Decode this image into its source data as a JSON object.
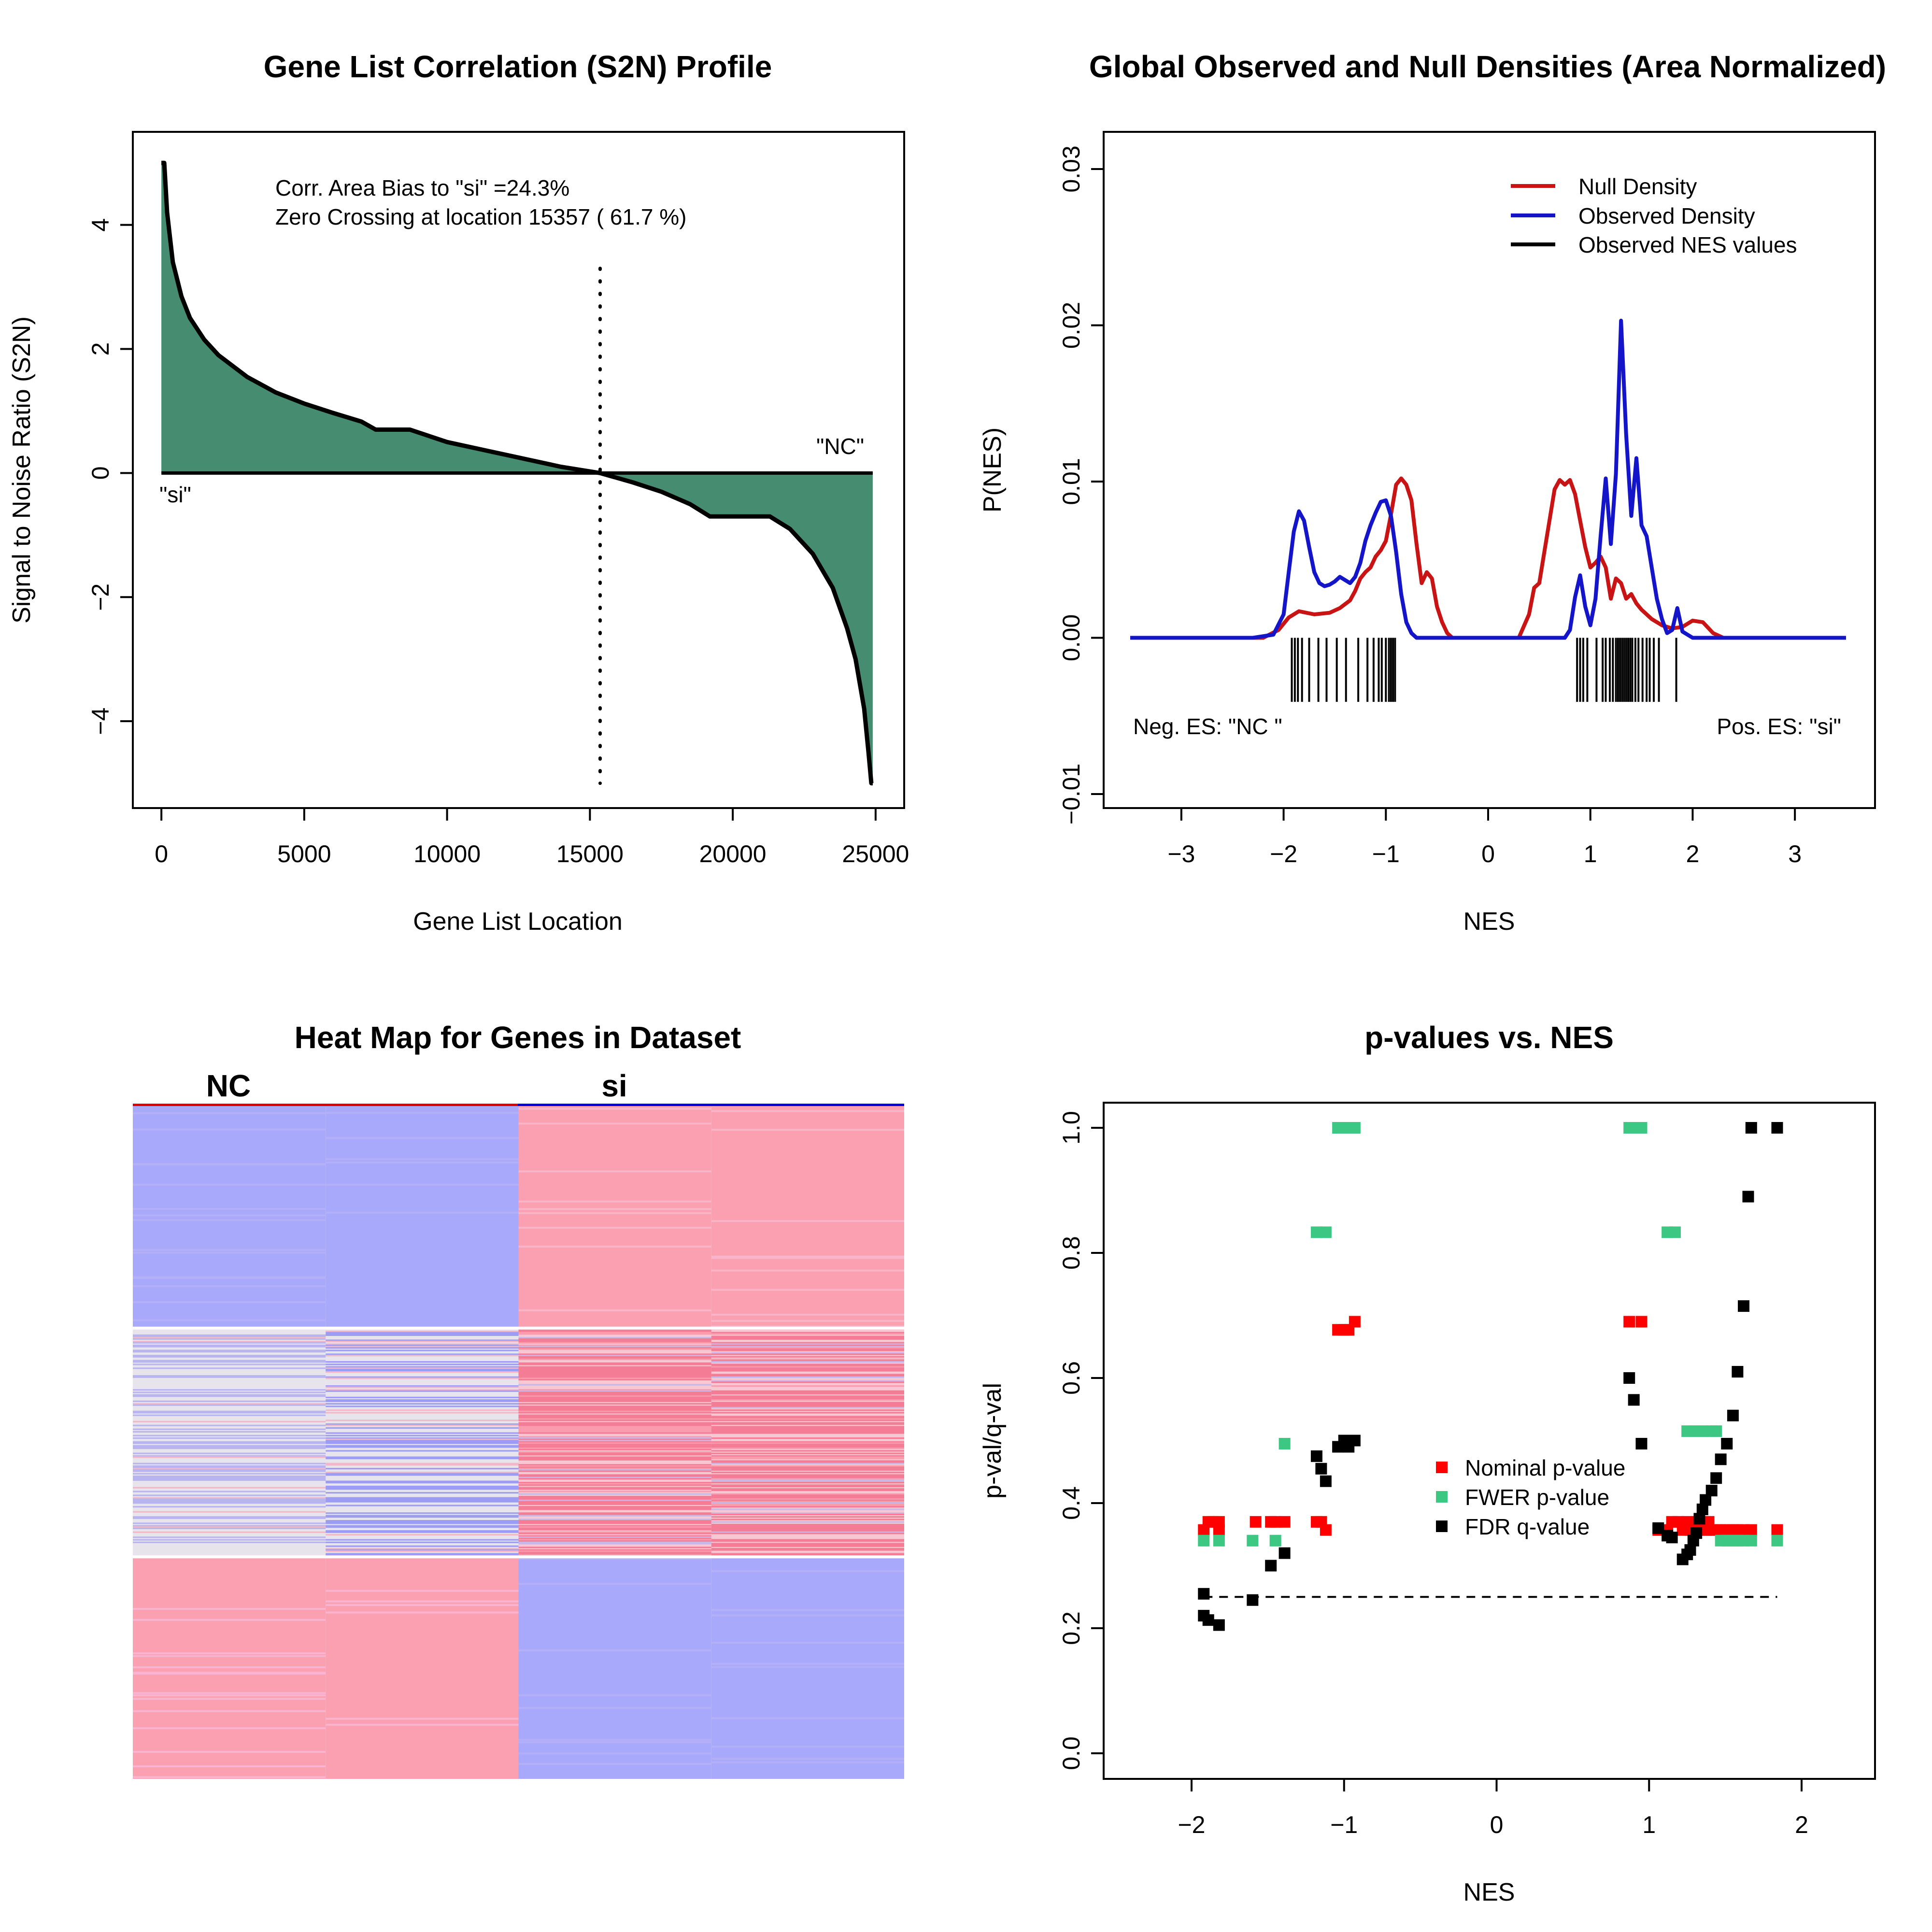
{
  "colors": {
    "fill_green": "#468C70",
    "null_red": "#C81414",
    "obs_blue": "#1414C8",
    "nominal_red": "#FF0000",
    "fwer_green": "#3CC882",
    "fdr_black": "#000000",
    "heat_blue": "#A9A9FB",
    "heat_pink": "#FBA0B0",
    "heat_white": "#E8E4EC"
  },
  "chart_data": [
    {
      "type": "area",
      "title": "Gene List Correlation (S2N) Profile",
      "xlabel": "Gene List Location",
      "ylabel": "Signal to Noise Ratio (S2N)",
      "xlim": [
        -1000,
        26000
      ],
      "ylim": [
        -5.4,
        5.5
      ],
      "xticks": [
        "0",
        "5000",
        "10000",
        "15000",
        "20000",
        "25000"
      ],
      "yticks": [
        "−4",
        "−2",
        "0",
        "2",
        "4"
      ],
      "x": [
        0,
        100,
        200,
        400,
        700,
        1000,
        1500,
        2000,
        3000,
        4000,
        5000,
        6000,
        7000,
        7500,
        8700,
        10000,
        12000,
        14000,
        15357,
        16500,
        17500,
        18500,
        19200,
        20000,
        21300,
        22000,
        22800,
        23500,
        24000,
        24300,
        24600,
        24750,
        24850,
        24900
      ],
      "values": [
        5.0,
        5.0,
        4.2,
        3.4,
        2.85,
        2.5,
        2.15,
        1.9,
        1.55,
        1.3,
        1.12,
        0.97,
        0.83,
        0.7,
        0.7,
        0.5,
        0.3,
        0.1,
        0.0,
        -0.15,
        -0.3,
        -0.5,
        -0.7,
        -0.7,
        -0.7,
        -0.9,
        -1.3,
        -1.85,
        -2.5,
        -3.0,
        -3.8,
        -4.5,
        -5.0,
        -5.0
      ],
      "zero_crossing": 15357,
      "annotations": [
        "Corr. Area Bias to \"si\" =24.3%",
        "Zero Crossing at location  15357  ( 61.7  %)"
      ],
      "end_labels": [
        "\"si\"",
        "\"NC\""
      ]
    },
    {
      "type": "line",
      "title": "Global Observed and Null Densities (Area Normalized)",
      "xlabel": "NES",
      "ylabel": "P(NES)",
      "xlim": [
        -3.5,
        3.5
      ],
      "ylim": [
        -0.0108,
        0.0303
      ],
      "xticks": [
        -3,
        -2,
        -1,
        0,
        1,
        2,
        3
      ],
      "yticks": [
        "−0.01",
        "0.00",
        "0.01",
        "0.02",
        "0.03"
      ],
      "legend": [
        "Null Density",
        "Observed Density",
        "Observed NES values"
      ],
      "legend_position": "top-right",
      "series": [
        {
          "name": "Null Density",
          "x": [
            -3.5,
            -2.2,
            -2.05,
            -1.95,
            -1.85,
            -1.7,
            -1.55,
            -1.45,
            -1.35,
            -1.3,
            -1.25,
            -1.2,
            -1.15,
            -1.1,
            -1.05,
            -1.0,
            -0.95,
            -0.9,
            -0.85,
            -0.8,
            -0.75,
            -0.7,
            -0.65,
            -0.6,
            -0.55,
            -0.5,
            -0.45,
            -0.4,
            -0.35,
            -0.3,
            0.3,
            0.4,
            0.45,
            0.5,
            0.55,
            0.6,
            0.65,
            0.7,
            0.75,
            0.8,
            0.85,
            0.9,
            0.95,
            1.0,
            1.05,
            1.1,
            1.15,
            1.2,
            1.25,
            1.3,
            1.35,
            1.4,
            1.45,
            1.5,
            1.55,
            1.6,
            1.7,
            1.8,
            1.9,
            2.0,
            2.1,
            2.2,
            2.3,
            3.5
          ],
          "values": [
            0,
            0,
            0.0005,
            0.0013,
            0.0017,
            0.0015,
            0.0016,
            0.0019,
            0.0024,
            0.003,
            0.0038,
            0.0042,
            0.0045,
            0.0052,
            0.0056,
            0.0062,
            0.0079,
            0.0098,
            0.0102,
            0.0098,
            0.0088,
            0.006,
            0.0035,
            0.0042,
            0.0038,
            0.002,
            0.001,
            0.0003,
            0,
            0,
            0,
            0.0015,
            0.0032,
            0.0035,
            0.0055,
            0.0075,
            0.0095,
            0.0101,
            0.0098,
            0.0101,
            0.0092,
            0.0075,
            0.0058,
            0.0045,
            0.0048,
            0.0052,
            0.0045,
            0.0025,
            0.0038,
            0.0035,
            0.0025,
            0.0028,
            0.0022,
            0.0018,
            0.0015,
            0.0012,
            0.0008,
            0.0006,
            0.0007,
            0.0011,
            0.001,
            0.0003,
            0,
            0
          ]
        },
        {
          "name": "Observed Density",
          "x": [
            -3.5,
            -2.3,
            -2.1,
            -2.0,
            -1.95,
            -1.9,
            -1.85,
            -1.8,
            -1.75,
            -1.7,
            -1.65,
            -1.6,
            -1.55,
            -1.5,
            -1.45,
            -1.4,
            -1.35,
            -1.3,
            -1.25,
            -1.2,
            -1.15,
            -1.1,
            -1.05,
            -1.0,
            -0.95,
            -0.9,
            -0.85,
            -0.8,
            -0.75,
            -0.7,
            -0.6,
            0.6,
            0.75,
            0.8,
            0.85,
            0.9,
            0.95,
            1.0,
            1.05,
            1.1,
            1.15,
            1.2,
            1.25,
            1.3,
            1.35,
            1.4,
            1.45,
            1.5,
            1.55,
            1.6,
            1.65,
            1.7,
            1.75,
            1.8,
            1.85,
            1.9,
            2.0,
            3.5
          ],
          "values": [
            0,
            0,
            0.0002,
            0.0015,
            0.0042,
            0.0068,
            0.0081,
            0.0075,
            0.0058,
            0.0042,
            0.0035,
            0.0033,
            0.0034,
            0.0036,
            0.0039,
            0.0037,
            0.0035,
            0.0039,
            0.0048,
            0.0062,
            0.0072,
            0.008,
            0.0087,
            0.0088,
            0.0078,
            0.0055,
            0.0028,
            0.001,
            0.0003,
            0,
            0,
            0,
            0,
            0.0005,
            0.0026,
            0.004,
            0.002,
            0.0008,
            0.0025,
            0.0065,
            0.0102,
            0.006,
            0.0105,
            0.0203,
            0.013,
            0.0078,
            0.0115,
            0.0072,
            0.0065,
            0.0045,
            0.0025,
            0.0012,
            0.0003,
            0.0005,
            0.0019,
            0.0004,
            0,
            0
          ]
        }
      ],
      "observed_nes": [
        -1.92,
        -1.89,
        -1.86,
        -1.82,
        -1.75,
        -1.66,
        -1.58,
        -1.48,
        -1.39,
        -1.27,
        -1.18,
        -1.12,
        -1.07,
        -1.04,
        -1.0,
        -0.97,
        -0.95,
        -0.93,
        -0.91,
        0.87,
        0.9,
        0.93,
        0.97,
        1.06,
        1.12,
        1.15,
        1.19,
        1.22,
        1.25,
        1.27,
        1.29,
        1.31,
        1.33,
        1.35,
        1.37,
        1.39,
        1.41,
        1.44,
        1.47,
        1.51,
        1.55,
        1.58,
        1.62,
        1.67,
        1.84
      ],
      "side_labels": [
        "Neg. ES: \"NC \"",
        "Pos. ES: \"si\""
      ]
    },
    {
      "type": "heatmap",
      "title": "Heat Map for Genes in Dataset",
      "column_groups": [
        "NC",
        "si"
      ],
      "columns": 4,
      "row_fractions": {
        "top_block": 0.33,
        "middle_block": 0.34,
        "bottom_block": 0.33
      }
    },
    {
      "type": "scatter",
      "title": "p-values vs. NES",
      "xlabel": "NES",
      "ylabel": "p-val/q-val",
      "xlim": [
        -2.5,
        2.5
      ],
      "ylim": [
        -0.04,
        1.04
      ],
      "xticks": [
        "−2",
        "−1",
        "0",
        "1",
        "2"
      ],
      "yticks": [
        "0.0",
        "0.2",
        "0.4",
        "0.6",
        "0.8",
        "1.0"
      ],
      "legend": [
        "Nominal p-value",
        "FWER p-value",
        "FDR q-value"
      ],
      "legend_position": "center-right",
      "threshold": 0.25,
      "series": [
        {
          "name": "Nominal p-value",
          "points": [
            [
              -1.92,
              0.357
            ],
            [
              -1.89,
              0.37
            ],
            [
              -1.86,
              0.37
            ],
            [
              -1.82,
              0.37
            ],
            [
              -1.82,
              0.357
            ],
            [
              -1.58,
              0.37
            ],
            [
              -1.48,
              0.37
            ],
            [
              -1.45,
              0.37
            ],
            [
              -1.39,
              0.37
            ],
            [
              -1.18,
              0.37
            ],
            [
              -1.15,
              0.37
            ],
            [
              -1.12,
              0.357
            ],
            [
              -1.04,
              0.677
            ],
            [
              -1.0,
              0.677
            ],
            [
              -0.97,
              0.677
            ],
            [
              -0.93,
              0.69
            ],
            [
              0.87,
              0.69
            ],
            [
              0.95,
              0.69
            ],
            [
              1.06,
              0.357
            ],
            [
              1.12,
              0.357
            ],
            [
              1.15,
              0.37
            ],
            [
              1.19,
              0.37
            ],
            [
              1.22,
              0.357
            ],
            [
              1.25,
              0.37
            ],
            [
              1.27,
              0.357
            ],
            [
              1.29,
              0.357
            ],
            [
              1.31,
              0.37
            ],
            [
              1.33,
              0.357
            ],
            [
              1.35,
              0.37
            ],
            [
              1.37,
              0.357
            ],
            [
              1.39,
              0.37
            ],
            [
              1.41,
              0.357
            ],
            [
              1.44,
              0.357
            ],
            [
              1.47,
              0.357
            ],
            [
              1.51,
              0.357
            ],
            [
              1.55,
              0.357
            ],
            [
              1.58,
              0.357
            ],
            [
              1.62,
              0.357
            ],
            [
              1.67,
              0.357
            ],
            [
              1.84,
              0.357
            ]
          ]
        },
        {
          "name": "FWER p-value",
          "points": [
            [
              -1.92,
              0.34
            ],
            [
              -1.82,
              0.34
            ],
            [
              -1.6,
              0.34
            ],
            [
              -1.45,
              0.34
            ],
            [
              -1.39,
              0.495
            ],
            [
              -1.18,
              0.833
            ],
            [
              -1.12,
              0.833
            ],
            [
              -1.04,
              1.0
            ],
            [
              -1.0,
              1.0
            ],
            [
              -0.97,
              1.0
            ],
            [
              -0.93,
              1.0
            ],
            [
              0.87,
              1.0
            ],
            [
              0.9,
              1.0
            ],
            [
              0.95,
              1.0
            ],
            [
              1.12,
              0.833
            ],
            [
              1.17,
              0.833
            ],
            [
              1.25,
              0.515
            ],
            [
              1.3,
              0.515
            ],
            [
              1.35,
              0.515
            ],
            [
              1.41,
              0.515
            ],
            [
              1.44,
              0.515
            ],
            [
              1.47,
              0.34
            ],
            [
              1.51,
              0.34
            ],
            [
              1.55,
              0.34
            ],
            [
              1.58,
              0.34
            ],
            [
              1.62,
              0.34
            ],
            [
              1.67,
              0.34
            ],
            [
              1.84,
              0.34
            ]
          ]
        },
        {
          "name": "FDR q-value",
          "points": [
            [
              -1.92,
              0.255
            ],
            [
              -1.92,
              0.22
            ],
            [
              -1.89,
              0.213
            ],
            [
              -1.82,
              0.205
            ],
            [
              -1.6,
              0.245
            ],
            [
              -1.48,
              0.3
            ],
            [
              -1.39,
              0.32
            ],
            [
              -1.18,
              0.475
            ],
            [
              -1.15,
              0.455
            ],
            [
              -1.12,
              0.435
            ],
            [
              -1.04,
              0.49
            ],
            [
              -1.0,
              0.5
            ],
            [
              -0.97,
              0.49
            ],
            [
              -0.93,
              0.5
            ],
            [
              0.87,
              0.6
            ],
            [
              0.9,
              0.565
            ],
            [
              0.95,
              0.495
            ],
            [
              1.06,
              0.36
            ],
            [
              1.12,
              0.348
            ],
            [
              1.15,
              0.345
            ],
            [
              1.22,
              0.31
            ],
            [
              1.25,
              0.318
            ],
            [
              1.27,
              0.325
            ],
            [
              1.29,
              0.34
            ],
            [
              1.31,
              0.352
            ],
            [
              1.33,
              0.375
            ],
            [
              1.35,
              0.39
            ],
            [
              1.37,
              0.405
            ],
            [
              1.41,
              0.42
            ],
            [
              1.44,
              0.44
            ],
            [
              1.47,
              0.47
            ],
            [
              1.51,
              0.495
            ],
            [
              1.55,
              0.54
            ],
            [
              1.58,
              0.61
            ],
            [
              1.62,
              0.715
            ],
            [
              1.65,
              0.89
            ],
            [
              1.67,
              1.0
            ],
            [
              1.84,
              1.0
            ]
          ]
        }
      ]
    }
  ]
}
